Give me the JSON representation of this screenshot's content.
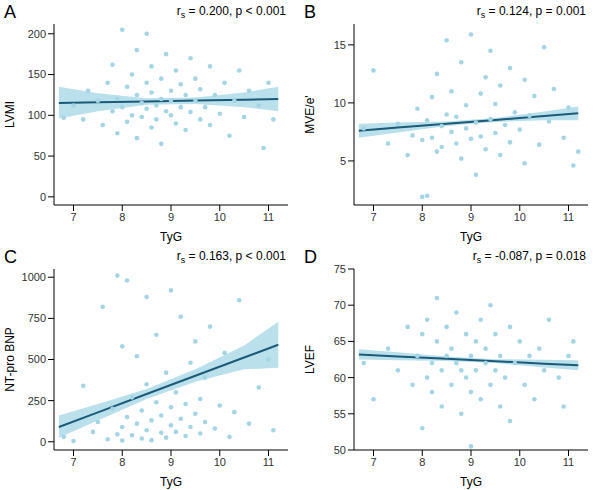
{
  "chart_data": [
    {
      "type": "scatter",
      "panel": "A",
      "x_label": "TyG",
      "y_label": "LVMI",
      "annotation": [
        "r",
        "s",
        " = 0.200, p < 0.001"
      ],
      "color": "#a3d5e5",
      "xlim": [
        6.6,
        11.4
      ],
      "xticks": [
        7,
        8,
        9,
        10,
        11
      ],
      "ylim": [
        -10,
        212
      ],
      "yticks": [
        0,
        50,
        100,
        150,
        200
      ],
      "x": [
        6.8,
        7.0,
        7.2,
        7.3,
        7.5,
        7.6,
        7.7,
        7.8,
        7.8,
        7.9,
        7.9,
        8.0,
        8.0,
        8.1,
        8.1,
        8.2,
        8.2,
        8.3,
        8.3,
        8.3,
        8.4,
        8.4,
        8.5,
        8.5,
        8.5,
        8.6,
        8.6,
        8.6,
        8.7,
        8.7,
        8.8,
        8.8,
        8.8,
        8.9,
        8.9,
        9.0,
        9.0,
        9.0,
        9.1,
        9.1,
        9.2,
        9.2,
        9.3,
        9.3,
        9.4,
        9.4,
        9.5,
        9.5,
        9.6,
        9.6,
        9.7,
        9.8,
        9.8,
        9.9,
        10.0,
        10.1,
        10.2,
        10.3,
        10.4,
        10.5,
        10.6,
        10.8,
        10.9,
        11.0,
        11.1
      ],
      "values": [
        97,
        112,
        95,
        130,
        118,
        88,
        140,
        105,
        162,
        120,
        78,
        110,
        205,
        135,
        92,
        150,
        100,
        125,
        180,
        72,
        115,
        98,
        140,
        108,
        200,
        85,
        128,
        160,
        112,
        95,
        145,
        120,
        65,
        105,
        175,
        130,
        100,
        118,
        90,
        155,
        110,
        138,
        82,
        125,
        170,
        104,
        118,
        145,
        95,
        132,
        110,
        160,
        88,
        125,
        102,
        140,
        75,
        118,
        155,
        98,
        130,
        112,
        60,
        140,
        95
      ],
      "fit": {
        "color": "#1b5b78",
        "band_color": "#a3d5e5",
        "x": [
          6.7,
          7.5,
          8.5,
          9.5,
          10.5,
          11.2
        ],
        "values": [
          115,
          115.9,
          117.0,
          118.1,
          119.2,
          120
        ],
        "lower": [
          96,
          105,
          113,
          114,
          110,
          105
        ],
        "upper": [
          135,
          127,
          121,
          122,
          128,
          135
        ]
      }
    },
    {
      "type": "scatter",
      "panel": "B",
      "x_label": "TyG",
      "y_label": "MVE/e'",
      "annotation": [
        "r",
        "s",
        " = 0.124, p = 0.001"
      ],
      "color": "#a3d5e5",
      "xlim": [
        6.6,
        11.4
      ],
      "xticks": [
        7,
        8,
        9,
        10,
        11
      ],
      "ylim": [
        1.2,
        16.8
      ],
      "yticks": [
        5,
        10,
        15
      ],
      "x": [
        6.8,
        7.0,
        7.3,
        7.5,
        7.7,
        7.8,
        7.9,
        8.0,
        8.0,
        8.1,
        8.1,
        8.2,
        8.2,
        8.3,
        8.3,
        8.4,
        8.4,
        8.5,
        8.5,
        8.6,
        8.6,
        8.7,
        8.7,
        8.8,
        8.8,
        8.9,
        8.9,
        9.0,
        9.0,
        9.1,
        9.1,
        9.2,
        9.2,
        9.3,
        9.3,
        9.4,
        9.4,
        9.5,
        9.5,
        9.6,
        9.6,
        9.7,
        9.8,
        9.8,
        9.9,
        10.0,
        10.1,
        10.1,
        10.2,
        10.3,
        10.4,
        10.5,
        10.6,
        10.7,
        10.9,
        11.0,
        11.1,
        11.2
      ],
      "values": [
        7.8,
        12.8,
        6.5,
        8.2,
        5.5,
        7.2,
        9.5,
        6.8,
        1.9,
        8.5,
        2.0,
        10.5,
        7.0,
        5.8,
        12.5,
        8.0,
        6.2,
        9.0,
        15.4,
        7.5,
        11.0,
        6.5,
        8.8,
        13.5,
        5.2,
        7.8,
        9.8,
        6.9,
        15.9,
        8.3,
        3.8,
        10.8,
        7.1,
        12.2,
        6.0,
        8.6,
        14.5,
        7.4,
        9.9,
        5.5,
        11.5,
        8.1,
        13.0,
        6.6,
        9.2,
        7.7,
        12.0,
        4.8,
        8.9,
        10.6,
        6.4,
        14.8,
        8.4,
        11.2,
        7.0,
        9.6,
        4.6,
        5.8
      ],
      "fit": {
        "color": "#1b5b78",
        "band_color": "#a3d5e5",
        "x": [
          6.7,
          7.5,
          8.5,
          9.5,
          10.5,
          11.2
        ],
        "values": [
          7.6,
          7.87,
          8.2,
          8.53,
          8.87,
          9.1
        ],
        "lower": [
          7.0,
          7.45,
          8.0,
          8.35,
          8.5,
          8.5
        ],
        "upper": [
          8.2,
          8.3,
          8.4,
          8.7,
          9.25,
          9.7
        ]
      }
    },
    {
      "type": "scatter",
      "panel": "C",
      "x_label": "TyG",
      "y_label": "NT-pro BNP",
      "annotation": [
        "r",
        "s",
        " = 0.163, p < 0.001"
      ],
      "color": "#a3d5e5",
      "xlim": [
        6.6,
        11.4
      ],
      "xticks": [
        7,
        8,
        9,
        10,
        11
      ],
      "ylim": [
        -50,
        1050
      ],
      "yticks": [
        0,
        250,
        500,
        750,
        1000
      ],
      "x": [
        6.8,
        7.0,
        7.2,
        7.4,
        7.5,
        7.6,
        7.7,
        7.8,
        7.9,
        7.9,
        8.0,
        8.0,
        8.0,
        8.1,
        8.1,
        8.2,
        8.2,
        8.3,
        8.3,
        8.4,
        8.4,
        8.5,
        8.5,
        8.5,
        8.6,
        8.6,
        8.7,
        8.7,
        8.8,
        8.8,
        8.9,
        8.9,
        9.0,
        9.0,
        9.0,
        9.1,
        9.1,
        9.2,
        9.2,
        9.3,
        9.3,
        9.4,
        9.4,
        9.5,
        9.5,
        9.6,
        9.6,
        9.7,
        9.7,
        9.8,
        9.9,
        10.0,
        10.1,
        10.2,
        10.3,
        10.4,
        10.6,
        10.8,
        11.0,
        11.1
      ],
      "values": [
        30,
        5,
        340,
        60,
        120,
        820,
        15,
        200,
        45,
        1010,
        90,
        580,
        8,
        150,
        980,
        40,
        270,
        110,
        520,
        20,
        190,
        70,
        880,
        350,
        130,
        10,
        240,
        650,
        55,
        160,
        420,
        25,
        100,
        920,
        210,
        60,
        300,
        140,
        760,
        35,
        230,
        480,
        90,
        170,
        610,
        50,
        260,
        390,
        120,
        700,
        80,
        220,
        540,
        30,
        180,
        860,
        110,
        330,
        500,
        70
      ],
      "fit": {
        "color": "#1b5b78",
        "band_color": "#a3d5e5",
        "x": [
          6.7,
          7.5,
          8.5,
          9.5,
          10.5,
          11.2
        ],
        "values": [
          90,
          179,
          290,
          401,
          512,
          590
        ],
        "lower": [
          25,
          130,
          260,
          365,
          440,
          450
        ],
        "upper": [
          160,
          230,
          320,
          440,
          585,
          730
        ]
      }
    },
    {
      "type": "scatter",
      "panel": "D",
      "x_label": "TyG",
      "y_label": "LVEF",
      "annotation": [
        "r",
        "s",
        " = -0.087, p = 0.018"
      ],
      "color": "#a3d5e5",
      "xlim": [
        6.6,
        11.4
      ],
      "xticks": [
        7,
        8,
        9,
        10,
        11
      ],
      "ylim": [
        50,
        75
      ],
      "yticks": [
        50,
        55,
        60,
        65,
        70,
        75
      ],
      "x": [
        6.8,
        7.0,
        7.3,
        7.5,
        7.7,
        7.8,
        7.9,
        8.0,
        8.0,
        8.1,
        8.1,
        8.2,
        8.2,
        8.3,
        8.3,
        8.4,
        8.4,
        8.5,
        8.5,
        8.6,
        8.6,
        8.7,
        8.7,
        8.8,
        8.8,
        8.9,
        8.9,
        9.0,
        9.0,
        9.0,
        9.1,
        9.1,
        9.2,
        9.2,
        9.3,
        9.3,
        9.4,
        9.4,
        9.5,
        9.5,
        9.6,
        9.6,
        9.7,
        9.8,
        9.8,
        9.9,
        10.0,
        10.1,
        10.2,
        10.3,
        10.4,
        10.5,
        10.6,
        10.8,
        10.9,
        11.0,
        11.1
      ],
      "values": [
        62,
        57,
        64,
        61,
        67,
        59,
        63,
        66,
        53,
        60,
        68,
        62,
        58,
        65,
        71,
        61,
        56,
        63,
        67,
        59,
        64,
        62,
        69,
        55,
        61,
        66,
        60,
        63,
        58,
        50.5,
        65,
        61,
        68,
        57,
        62,
        64,
        59,
        70,
        61,
        66,
        56,
        63,
        60,
        67,
        54,
        62,
        65,
        59,
        63,
        57,
        64,
        61,
        68,
        60,
        56,
        63,
        65
      ],
      "fit": {
        "color": "#1b5b78",
        "band_color": "#a3d5e5",
        "x": [
          6.7,
          7.5,
          8.5,
          9.5,
          10.5,
          11.2
        ],
        "values": [
          63.2,
          62.93,
          62.6,
          62.27,
          61.93,
          61.7
        ],
        "lower": [
          62.5,
          62.4,
          62.3,
          62.0,
          61.4,
          61.0
        ],
        "upper": [
          63.9,
          63.5,
          62.9,
          62.55,
          62.45,
          62.4
        ]
      }
    }
  ]
}
